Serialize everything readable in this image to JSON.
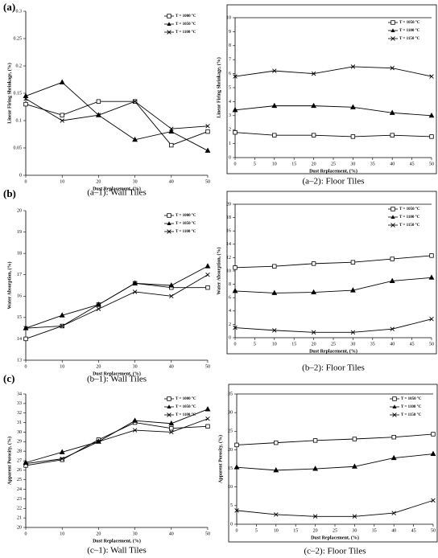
{
  "panel_labels": [
    "(a)",
    "(b)",
    "(c)"
  ],
  "chart_data": [
    {
      "type": "line",
      "caption": "(a–1): Wall Tiles",
      "ylabel": "Linear Firing Shrinkage, (%)",
      "xlabel": "Dust Replacement, (%)",
      "x": [
        0,
        10,
        20,
        30,
        40,
        50
      ],
      "xlim": [
        0,
        50
      ],
      "xticks": [
        0,
        10,
        20,
        30,
        40,
        50
      ],
      "ylim": [
        0,
        0.3
      ],
      "yticks": [
        0,
        0.05,
        0.1,
        0.15,
        0.2,
        0.25,
        0.3
      ],
      "frame": false,
      "series": [
        {
          "name": "T = 1000 °C",
          "marker": "square",
          "color": "#000000",
          "values": [
            0.13,
            0.11,
            0.135,
            0.135,
            0.055,
            0.08
          ]
        },
        {
          "name": "T = 1050 °C",
          "marker": "triangle",
          "color": "#000000",
          "values": [
            0.145,
            0.17,
            0.11,
            0.065,
            0.08,
            0.045
          ]
        },
        {
          "name": "T = 1100 °C",
          "marker": "x",
          "color": "#000000",
          "values": [
            0.14,
            0.1,
            0.11,
            0.135,
            0.085,
            0.09
          ]
        }
      ]
    },
    {
      "type": "line",
      "caption": "(a–2): Floor Tiles",
      "ylabel": "Linear Firing Shrinkage, (%)",
      "xlabel": "Dust Replacement, (%)",
      "x": [
        0,
        10,
        20,
        30,
        40,
        50
      ],
      "xlim": [
        0,
        50
      ],
      "xticks": [
        0,
        5,
        10,
        15,
        20,
        25,
        30,
        35,
        40,
        45,
        50
      ],
      "ylim": [
        0,
        10
      ],
      "yticks": [
        0,
        1,
        2,
        3,
        4,
        5,
        6,
        7,
        8,
        9,
        10
      ],
      "frame": true,
      "series": [
        {
          "name": "T = 1050 °C",
          "marker": "square",
          "color": "#000000",
          "values": [
            1.8,
            1.6,
            1.6,
            1.5,
            1.6,
            1.5
          ]
        },
        {
          "name": "T = 1100 °C",
          "marker": "triangle",
          "color": "#000000",
          "values": [
            3.4,
            3.7,
            3.7,
            3.6,
            3.2,
            3.0
          ]
        },
        {
          "name": "T = 1150 °C",
          "marker": "x",
          "color": "#000000",
          "values": [
            5.8,
            6.2,
            6.0,
            6.5,
            6.4,
            5.8
          ]
        }
      ]
    },
    {
      "type": "line",
      "caption": "(b–1): Wall Tiles",
      "ylabel": "Water Absorption, (%)",
      "xlabel": "Dust Replacement, (%)",
      "x": [
        0,
        10,
        20,
        30,
        40,
        50
      ],
      "xlim": [
        0,
        50
      ],
      "xticks": [
        0,
        10,
        20,
        30,
        40,
        50
      ],
      "ylim": [
        13,
        20
      ],
      "yticks": [
        13,
        14,
        15,
        16,
        17,
        18,
        19,
        20
      ],
      "frame": false,
      "series": [
        {
          "name": "T = 1000 °C",
          "marker": "square",
          "color": "#000000",
          "values": [
            14.0,
            14.6,
            15.6,
            16.6,
            16.4,
            16.4
          ]
        },
        {
          "name": "T = 1050 °C",
          "marker": "triangle",
          "color": "#000000",
          "values": [
            14.5,
            15.1,
            15.6,
            16.6,
            16.5,
            17.4
          ]
        },
        {
          "name": "T = 1100 °C",
          "marker": "x",
          "color": "#000000",
          "values": [
            14.5,
            14.6,
            15.4,
            16.2,
            16.0,
            17.0
          ]
        }
      ]
    },
    {
      "type": "line",
      "caption": "(b–2): Floor Tiles",
      "ylabel": "Water Absorption, (%)",
      "xlabel": "Dust Replacement, (%)",
      "x": [
        0,
        10,
        20,
        30,
        40,
        50
      ],
      "xlim": [
        0,
        50
      ],
      "xticks": [
        0,
        5,
        10,
        15,
        20,
        25,
        30,
        35,
        40,
        45,
        50
      ],
      "ylim": [
        0,
        20
      ],
      "yticks": [
        0,
        2,
        4,
        6,
        8,
        10,
        12,
        14,
        16,
        18,
        20
      ],
      "frame": true,
      "series": [
        {
          "name": "T = 1050 °C",
          "marker": "square",
          "color": "#000000",
          "values": [
            10.5,
            10.7,
            11.1,
            11.3,
            11.8,
            12.3
          ]
        },
        {
          "name": "T = 1100 °C",
          "marker": "triangle",
          "color": "#000000",
          "values": [
            7.0,
            6.7,
            6.8,
            7.1,
            8.5,
            9.0
          ]
        },
        {
          "name": "T = 1150 °C",
          "marker": "x",
          "color": "#000000",
          "values": [
            1.5,
            1.1,
            0.8,
            0.8,
            1.3,
            2.8
          ]
        }
      ]
    },
    {
      "type": "line",
      "caption": "(c–1): Wall Tiles",
      "ylabel": "Apparent Porosity, (%)",
      "xlabel": "Dust Replacement, (%)",
      "x": [
        0,
        10,
        20,
        30,
        40,
        50
      ],
      "xlim": [
        0,
        50
      ],
      "xticks": [
        0,
        10,
        20,
        30,
        40,
        50
      ],
      "ylim": [
        20,
        34
      ],
      "yticks": [
        20,
        21,
        22,
        23,
        24,
        25,
        26,
        27,
        28,
        29,
        30,
        31,
        32,
        33,
        34
      ],
      "frame": false,
      "series": [
        {
          "name": "T = 1000 °C",
          "marker": "square",
          "color": "#000000",
          "values": [
            26.5,
            27.1,
            29.2,
            31.0,
            30.4,
            30.6
          ]
        },
        {
          "name": "T = 1050 °C",
          "marker": "triangle",
          "color": "#000000",
          "values": [
            26.8,
            27.9,
            29.0,
            31.2,
            30.9,
            32.4
          ]
        },
        {
          "name": "T = 1100 °C",
          "marker": "x",
          "color": "#000000",
          "values": [
            26.7,
            27.2,
            29.0,
            30.2,
            30.0,
            31.4
          ]
        }
      ]
    },
    {
      "type": "line",
      "caption": "(c–2): Floor Tiles",
      "ylabel": "Apparent Porosity, (%)",
      "xlabel": "Dust Replacement, (%)",
      "x": [
        0,
        10,
        20,
        30,
        40,
        50
      ],
      "xlim": [
        0,
        50
      ],
      "xticks": [
        0,
        5,
        10,
        15,
        20,
        25,
        30,
        35,
        40,
        45,
        50
      ],
      "ylim": [
        0,
        35
      ],
      "yticks": [
        0,
        5,
        10,
        15,
        20,
        25,
        30,
        35
      ],
      "frame": true,
      "series": [
        {
          "name": "T = 1050 °C",
          "marker": "square",
          "color": "#000000",
          "values": [
            21.3,
            21.9,
            22.5,
            22.9,
            23.4,
            24.2
          ]
        },
        {
          "name": "T = 1100 °C",
          "marker": "triangle",
          "color": "#000000",
          "values": [
            15.3,
            14.5,
            14.9,
            15.5,
            17.8,
            18.9
          ]
        },
        {
          "name": "T = 1150 °C",
          "marker": "x",
          "color": "#000000",
          "values": [
            3.7,
            2.6,
            2.1,
            2.1,
            3.0,
            6.4
          ]
        }
      ]
    }
  ]
}
